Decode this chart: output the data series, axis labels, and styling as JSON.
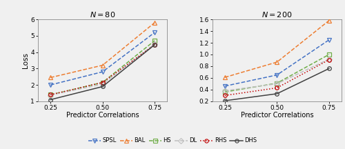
{
  "x": [
    0.25,
    0.5,
    0.75
  ],
  "left": {
    "title": "N = 80",
    "ylim": [
      1,
      6
    ],
    "yticks": [
      1,
      2,
      3,
      4,
      5,
      6
    ],
    "ylabel": "Loss",
    "series": {
      "SPSL": {
        "values": [
          2.0,
          2.8,
          5.2
        ],
        "color": "#4472c4",
        "linestyle": "--",
        "marker": "v",
        "markersize": 4.5,
        "fillstyle": "none"
      },
      "BAL": {
        "values": [
          2.45,
          3.2,
          5.8
        ],
        "color": "#ed7d31",
        "linestyle": "--",
        "marker": "^",
        "markersize": 4.5,
        "fillstyle": "none"
      },
      "HS": {
        "values": [
          1.4,
          2.15,
          4.7
        ],
        "color": "#70ad47",
        "linestyle": "--",
        "marker": "s",
        "markersize": 4.0,
        "fillstyle": "none"
      },
      "DL": {
        "values": [
          1.38,
          2.05,
          4.5
        ],
        "color": "#bfbfbf",
        "linestyle": "--",
        "marker": "D",
        "markersize": 4.0,
        "fillstyle": "none"
      },
      "RHS": {
        "values": [
          1.4,
          2.15,
          4.45
        ],
        "color": "#c00000",
        "linestyle": ":",
        "marker": "o",
        "markersize": 4.0,
        "fillstyle": "none"
      },
      "DHS": {
        "values": [
          1.1,
          1.9,
          4.45
        ],
        "color": "#404040",
        "linestyle": "-",
        "marker": "o",
        "markersize": 4.0,
        "fillstyle": "none"
      }
    }
  },
  "right": {
    "title": "N = 200",
    "ylim": [
      0.2,
      1.6
    ],
    "yticks": [
      0.2,
      0.4,
      0.6,
      0.8,
      1.0,
      1.2,
      1.4,
      1.6
    ],
    "ylabel": "",
    "series": {
      "SPSL": {
        "values": [
          0.46,
          0.65,
          1.25
        ],
        "color": "#4472c4",
        "linestyle": "--",
        "marker": "v",
        "markersize": 4.5,
        "fillstyle": "none"
      },
      "BAL": {
        "values": [
          0.61,
          0.87,
          1.58
        ],
        "color": "#ed7d31",
        "linestyle": "--",
        "marker": "^",
        "markersize": 4.5,
        "fillstyle": "none"
      },
      "HS": {
        "values": [
          0.36,
          0.51,
          1.0
        ],
        "color": "#70ad47",
        "linestyle": "--",
        "marker": "s",
        "markersize": 4.0,
        "fillstyle": "none"
      },
      "DL": {
        "values": [
          0.38,
          0.5,
          0.92
        ],
        "color": "#bfbfbf",
        "linestyle": "--",
        "marker": "D",
        "markersize": 4.0,
        "fillstyle": "none"
      },
      "RHS": {
        "values": [
          0.3,
          0.43,
          0.91
        ],
        "color": "#c00000",
        "linestyle": ":",
        "marker": "o",
        "markersize": 4.0,
        "fillstyle": "none"
      },
      "DHS": {
        "values": [
          0.21,
          0.33,
          0.76
        ],
        "color": "#404040",
        "linestyle": "-",
        "marker": "o",
        "markersize": 4.0,
        "fillstyle": "none"
      }
    }
  },
  "xlabel": "Predictor Correlations",
  "legend_order": [
    "SPSL",
    "BAL",
    "HS",
    "DL",
    "RHS",
    "DHS"
  ],
  "xticks": [
    0.25,
    0.5,
    0.75
  ],
  "xtick_labels": [
    "0.25",
    "0.50",
    "0.75"
  ],
  "bg_color": "#f0f0f0"
}
